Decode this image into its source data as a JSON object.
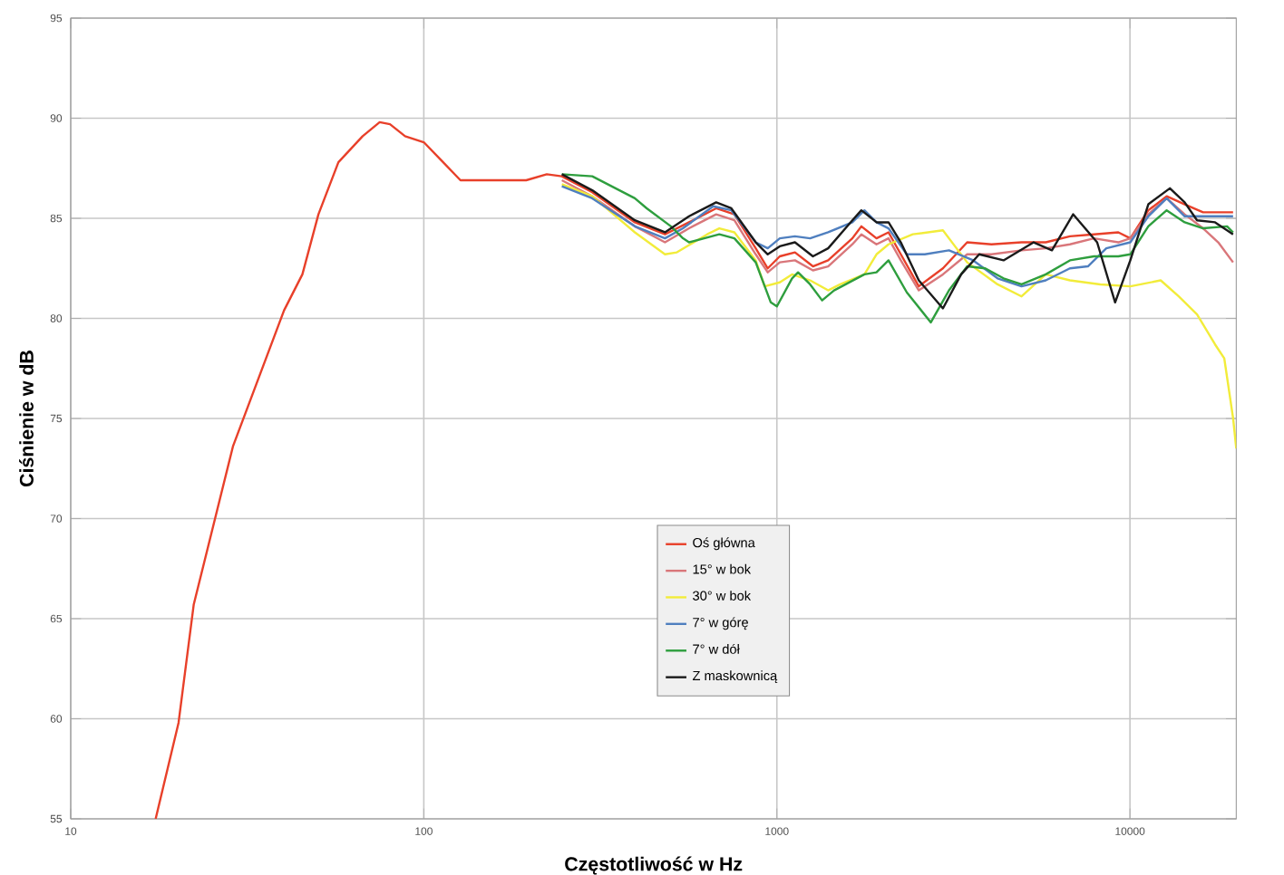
{
  "chart_data": {
    "type": "line",
    "xlabel": "Częstotliwość w Hz",
    "ylabel": "Ciśnienie w dB",
    "log": "x",
    "xlim": [
      10,
      20000
    ],
    "xticks": [
      10,
      100,
      1000,
      10000
    ],
    "ylim": [
      55,
      95
    ],
    "yticks": [
      55,
      60,
      65,
      70,
      75,
      80,
      85,
      90,
      95
    ],
    "grid": true,
    "legend": "bottom",
    "series": [
      {
        "name": "Oś główna",
        "color": "#e8402a",
        "x": [
          17.4,
          20.2,
          22.3,
          28.8,
          40.2,
          45.3,
          50.3,
          57.3,
          67.1,
          75,
          80.2,
          88.5,
          100,
          112,
          127,
          166,
          195,
          223,
          246,
          300,
          396,
          482,
          564,
          673,
          758,
          871,
          942,
          1019,
          1125,
          1265,
          1397,
          1636,
          1735,
          1915,
          2071,
          2244,
          2523,
          2953,
          3459,
          4053,
          4932,
          5776,
          6761,
          7907,
          9268,
          10023,
          11272,
          12706,
          14289,
          16106,
          19590
        ],
        "values": [
          55,
          59.8,
          65.7,
          73.6,
          80.4,
          82.2,
          85.2,
          87.8,
          89.1,
          89.8,
          89.7,
          89.1,
          88.8,
          87.9,
          86.9,
          86.9,
          86.9,
          87.2,
          87.1,
          86.3,
          84.8,
          84.2,
          84.8,
          85.5,
          85.2,
          83.5,
          82.5,
          83.1,
          83.3,
          82.6,
          82.9,
          84.0,
          84.6,
          84.0,
          84.3,
          83.2,
          81.6,
          82.5,
          83.8,
          83.7,
          83.8,
          83.8,
          84.1,
          84.2,
          84.3,
          84.0,
          85.4,
          86.1,
          85.7,
          85.3,
          85.3
        ]
      },
      {
        "name": "15° w bok",
        "color": "#d9767a",
        "x": [
          246,
          300,
          396,
          482,
          564,
          673,
          758,
          871,
          942,
          1019,
          1125,
          1265,
          1397,
          1636,
          1735,
          1915,
          2071,
          2244,
          2523,
          2953,
          3459,
          4053,
          4932,
          5776,
          6761,
          7907,
          9268,
          10023,
          11272,
          12706,
          14289,
          16106,
          17783,
          19590
        ],
        "values": [
          86.9,
          86.1,
          84.6,
          83.8,
          84.5,
          85.2,
          84.9,
          83.2,
          82.3,
          82.8,
          82.9,
          82.4,
          82.6,
          83.7,
          84.2,
          83.7,
          84.0,
          82.9,
          81.4,
          82.2,
          83.2,
          83.2,
          83.4,
          83.5,
          83.7,
          84.0,
          83.8,
          84.0,
          85.2,
          86.0,
          85.2,
          84.5,
          83.8,
          82.8
        ]
      },
      {
        "name": "30° w bok",
        "color": "#f2ec3a",
        "x": [
          246,
          300,
          396,
          482,
          521,
          635,
          687,
          758,
          871,
          923,
          1019,
          1104,
          1242,
          1397,
          1511,
          1770,
          1915,
          2071,
          2426,
          2953,
          3459,
          4217,
          4932,
          5776,
          6761,
          8240,
          10023,
          12218,
          13740,
          15488,
          17418,
          18500,
          19600,
          20000
        ],
        "values": [
          86.7,
          86.1,
          84.3,
          83.2,
          83.3,
          84.2,
          84.5,
          84.3,
          82.9,
          81.6,
          81.8,
          82.2,
          81.9,
          81.4,
          81.7,
          82.2,
          83.2,
          83.7,
          84.2,
          84.4,
          82.8,
          81.7,
          81.1,
          82.2,
          81.9,
          81.7,
          81.6,
          81.9,
          81.1,
          80.2,
          78.7,
          78.0,
          75.0,
          73.5
        ]
      },
      {
        "name": "7° w górę",
        "color": "#4f7fbf",
        "x": [
          246,
          300,
          396,
          482,
          542,
          660,
          743,
          871,
          942,
          1019,
          1125,
          1242,
          1397,
          1636,
          1770,
          1915,
          2071,
          2333,
          2624,
          3072,
          3598,
          4217,
          4932,
          5776,
          6761,
          7603,
          8570,
          10023,
          11272,
          12706,
          14289,
          16106,
          19590
        ],
        "values": [
          86.6,
          86.0,
          84.6,
          84.0,
          84.5,
          85.6,
          85.4,
          83.8,
          83.5,
          84.0,
          84.1,
          84.0,
          84.3,
          84.8,
          85.4,
          84.8,
          84.5,
          83.2,
          83.2,
          83.4,
          82.9,
          82.0,
          81.6,
          81.9,
          82.5,
          82.6,
          83.5,
          83.8,
          85.1,
          86.0,
          85.1,
          85.1,
          85.1
        ]
      },
      {
        "name": "7° w dół",
        "color": "#2e9e3e",
        "x": [
          246,
          300,
          396,
          428,
          501,
          542,
          564,
          687,
          758,
          871,
          961,
          1000,
          1104,
          1148,
          1242,
          1343,
          1452,
          1770,
          1915,
          2071,
          2333,
          2729,
          3072,
          3459,
          3891,
          4385,
          4932,
          5776,
          6761,
          7907,
          9268,
          10023,
          11272,
          12706,
          14289,
          16106,
          18836,
          19590
        ],
        "values": [
          87.2,
          87.1,
          86.0,
          85.5,
          84.6,
          84.0,
          83.8,
          84.2,
          84.0,
          82.8,
          80.8,
          80.6,
          82.0,
          82.3,
          81.7,
          80.9,
          81.4,
          82.2,
          82.3,
          82.9,
          81.3,
          79.8,
          81.4,
          82.6,
          82.5,
          82.0,
          81.7,
          82.2,
          82.9,
          83.1,
          83.1,
          83.2,
          84.6,
          85.4,
          84.8,
          84.5,
          84.6,
          84.3
        ]
      },
      {
        "name": "Z maskownicą",
        "color": "#1a1a1a",
        "x": [
          246,
          300,
          396,
          482,
          564,
          673,
          743,
          871,
          942,
          1019,
          1125,
          1265,
          1397,
          1636,
          1735,
          1915,
          2071,
          2244,
          2523,
          2953,
          3326,
          3741,
          4385,
          5336,
          6012,
          6902,
          8072,
          9078,
          10023,
          11272,
          12974,
          14289,
          15488,
          17418,
          19590
        ],
        "values": [
          87.2,
          86.4,
          84.9,
          84.3,
          85.1,
          85.8,
          85.5,
          83.8,
          83.2,
          83.6,
          83.8,
          83.1,
          83.5,
          84.9,
          85.4,
          84.8,
          84.8,
          83.8,
          81.9,
          80.5,
          82.2,
          83.2,
          82.9,
          83.8,
          83.4,
          85.2,
          83.8,
          80.8,
          82.9,
          85.7,
          86.5,
          85.8,
          84.9,
          84.8,
          84.2
        ]
      }
    ]
  }
}
